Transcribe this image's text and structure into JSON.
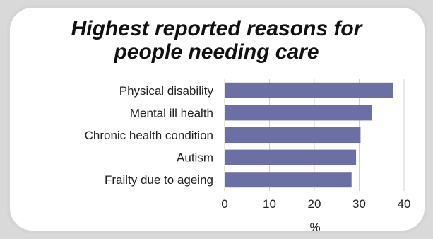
{
  "colors": {
    "bar": "#6b6fa3",
    "gridline": "#d0d0d0",
    "frame_border": "#d4d4d4",
    "background": "#d9d9d9"
  },
  "chart_data": {
    "type": "bar",
    "orientation": "horizontal",
    "title_lines": [
      "Highest reported reasons for",
      "people needing care"
    ],
    "categories": [
      "Physical disability",
      "Mental ill health",
      "Chronic health condition",
      "Autism",
      "Frailty due to ageing"
    ],
    "values": [
      37.5,
      32.8,
      30.3,
      29.3,
      28.3
    ],
    "xlabel": "%",
    "ylabel": "",
    "xlim": [
      0,
      40
    ],
    "xticks": [
      0,
      10,
      20,
      30,
      40
    ],
    "grid": true,
    "legend": "none"
  }
}
